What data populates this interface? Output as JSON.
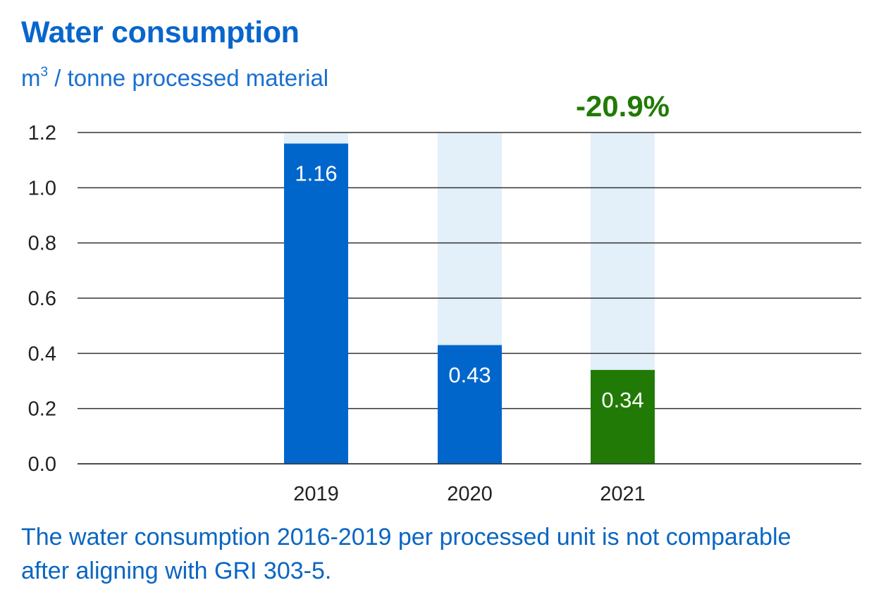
{
  "chart_data": {
    "type": "bar",
    "title": "Water consumption",
    "ylabel": "m³ / tonne processed material",
    "ylabel_parts": {
      "unit_base": "m",
      "unit_sup": "3",
      "rest": " / tonne processed material"
    },
    "xlabel": "",
    "categories": [
      "2019",
      "2020",
      "2021"
    ],
    "values": [
      1.16,
      0.43,
      0.34
    ],
    "value_labels": [
      "1.16",
      "0.43",
      "0.34"
    ],
    "bar_colors": [
      "#0066cc",
      "#0066cc",
      "#217a05"
    ],
    "background_bar_value": 1.2,
    "background_bar_color": "#e3eff9",
    "ylim": [
      0,
      1.2
    ],
    "yticks": [
      0.0,
      0.2,
      0.4,
      0.6,
      0.8,
      1.0,
      1.2
    ],
    "ytick_labels": [
      "0.0",
      "0.2",
      "0.4",
      "0.6",
      "0.8",
      "1.0",
      "1.2"
    ],
    "grid": true,
    "annotation": {
      "text": "-20.9%",
      "category": "2021",
      "color": "#217a05"
    },
    "legend": "none"
  },
  "footnote": "The water consumption 2016-2019 per processed unit is not comparable after aligning with GRI 303-5."
}
